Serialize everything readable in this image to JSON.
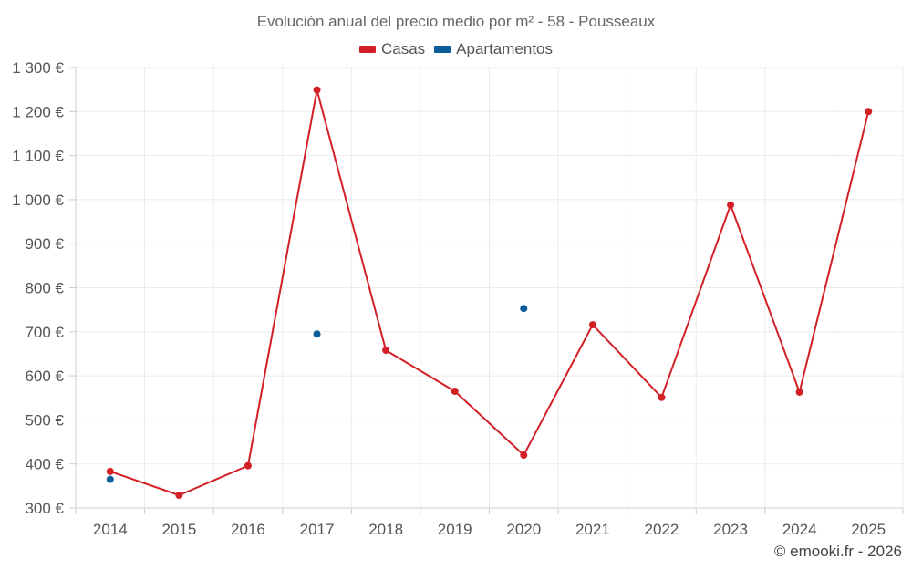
{
  "chart_data": {
    "type": "line",
    "title": "Evolución anual del precio medio por m² - 58 - Pousseaux",
    "xlabel": "",
    "ylabel": "",
    "categories": [
      "2014",
      "2015",
      "2016",
      "2017",
      "2018",
      "2019",
      "2020",
      "2021",
      "2022",
      "2023",
      "2024",
      "2025"
    ],
    "ylim": [
      300,
      1300
    ],
    "yticks": [
      300,
      400,
      500,
      600,
      700,
      800,
      900,
      1000,
      1100,
      1200,
      1300
    ],
    "ytick_labels": [
      "300 €",
      "400 €",
      "500 €",
      "600 €",
      "700 €",
      "800 €",
      "900 €",
      "1 000 €",
      "1 100 €",
      "1 200 €",
      "1 300 €"
    ],
    "grid": true,
    "legend_position": "top-center",
    "series": [
      {
        "name": "Casas",
        "color": "#d32027",
        "style": "line",
        "values": [
          383,
          329,
          396,
          1249,
          658,
          565,
          420,
          716,
          551,
          988,
          563,
          1200
        ]
      },
      {
        "name": "Apartamentos",
        "color": "#0a5e99",
        "style": "points",
        "values": [
          365,
          null,
          null,
          695,
          null,
          null,
          753,
          null,
          null,
          null,
          null,
          null
        ]
      }
    ]
  },
  "footer": "© emooki.fr - 2026"
}
